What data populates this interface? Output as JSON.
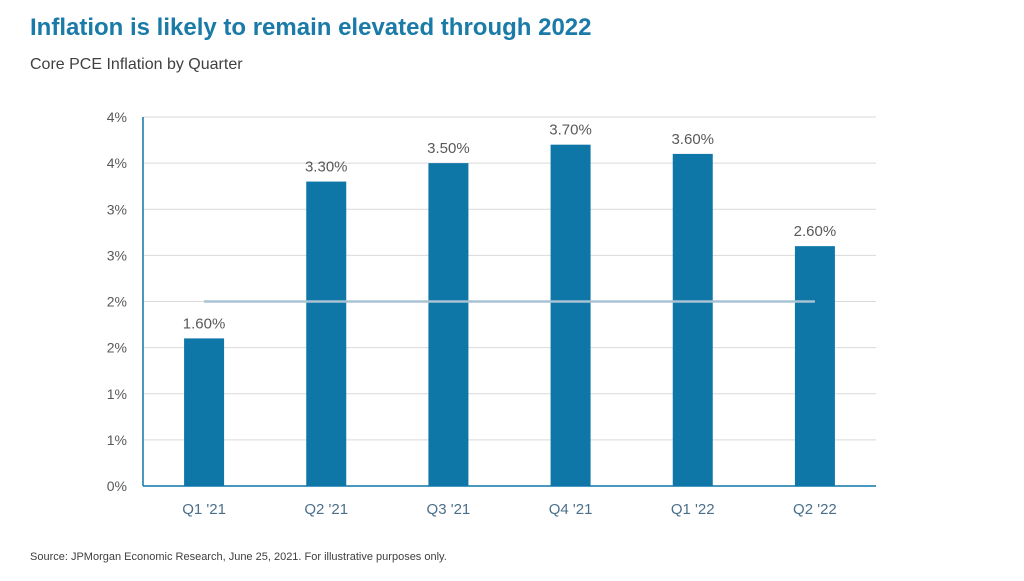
{
  "header": {
    "title": "Inflation is likely to remain elevated through 2022",
    "subtitle": "Core PCE Inflation by Quarter"
  },
  "footer": {
    "source": "Source: JPMorgan Economic Research, June 25, 2021. For illustrative purposes only."
  },
  "colors": {
    "title": "#1a7aa8",
    "bar": "#0f76a8",
    "reference_line": "#a9c2d3",
    "axis_text": "#595959",
    "category_text": "#4a6f8a",
    "gridline": "#d9d9d9"
  },
  "chart_data": {
    "type": "bar",
    "categories": [
      "Q1 '21",
      "Q2 '21",
      "Q3 '21",
      "Q4 '21",
      "Q1 '22",
      "Q2 '22"
    ],
    "values": [
      1.6,
      3.3,
      3.5,
      3.7,
      3.6,
      2.6
    ],
    "data_labels": [
      "1.60%",
      "3.30%",
      "3.50%",
      "3.70%",
      "3.60%",
      "2.60%"
    ],
    "y_tick_labels": [
      "0%",
      "1%",
      "1%",
      "2%",
      "2%",
      "3%",
      "3%",
      "4%",
      "4%"
    ],
    "ylim": [
      0,
      4
    ],
    "y_tick_step": 0.5,
    "reference_line": {
      "value": 2.0
    },
    "grid": true,
    "title": "Inflation is likely to remain elevated through 2022",
    "subtitle": "Core PCE Inflation by Quarter",
    "xlabel": "",
    "ylabel": ""
  }
}
